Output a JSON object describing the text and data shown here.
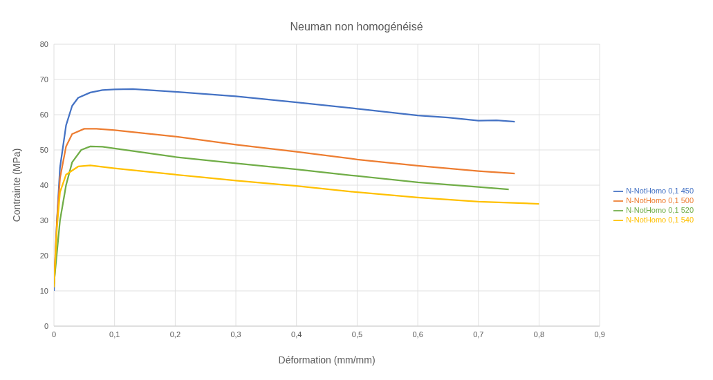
{
  "chart_data": {
    "type": "line",
    "title": "Neuman non homogénéisé",
    "xlabel": "Déformation (mm/mm)",
    "ylabel": "Contrainte (MPa)",
    "xlim": [
      0,
      0.9
    ],
    "xticks": [
      0,
      {
        "value": 0.1,
        "label": "0,1"
      },
      {
        "value": 0.2,
        "label": "0,2"
      },
      {
        "value": 0.3,
        "label": "0,3"
      },
      {
        "value": 0.4,
        "label": "0,4"
      },
      {
        "value": 0.5,
        "label": "0,5"
      },
      {
        "value": 0.6,
        "label": "0,6"
      },
      {
        "value": 0.7,
        "label": "0,7"
      },
      {
        "value": 0.8,
        "label": "0,8"
      },
      {
        "value": 0.9,
        "label": "0,9"
      }
    ],
    "ylim": [
      0,
      80
    ],
    "yticks": [
      0,
      10,
      20,
      30,
      40,
      50,
      60,
      70,
      80
    ],
    "grid": true,
    "legend": "right",
    "marker": "none",
    "line_style": "solid",
    "series": [
      {
        "name": "N-NotHomo 0,1 450",
        "color": "#4472c4",
        "x": [
          0,
          0.005,
          0.01,
          0.02,
          0.03,
          0.04,
          0.06,
          0.08,
          0.1,
          0.13,
          0.2,
          0.3,
          0.4,
          0.5,
          0.6,
          0.65,
          0.7,
          0.73,
          0.76
        ],
        "values": [
          10,
          30,
          45,
          57,
          62.5,
          64.8,
          66.3,
          67,
          67.2,
          67.3,
          66.5,
          65.2,
          63.5,
          61.7,
          59.8,
          59.2,
          58.3,
          58.4,
          58
        ]
      },
      {
        "name": "N-NotHomo 0,1 500",
        "color": "#ed7d31",
        "x": [
          0,
          0.005,
          0.01,
          0.02,
          0.03,
          0.05,
          0.07,
          0.1,
          0.2,
          0.3,
          0.4,
          0.5,
          0.6,
          0.7,
          0.76
        ],
        "values": [
          12,
          30,
          42,
          51,
          54.5,
          56,
          56,
          55.6,
          53.8,
          51.5,
          49.5,
          47.3,
          45.5,
          44,
          43.3
        ]
      },
      {
        "name": "N-NotHomo 0,1 520",
        "color": "#70ad47",
        "x": [
          0,
          0.01,
          0.02,
          0.03,
          0.045,
          0.06,
          0.08,
          0.1,
          0.2,
          0.3,
          0.4,
          0.5,
          0.6,
          0.7,
          0.75
        ],
        "values": [
          12,
          30,
          40,
          46.5,
          50,
          51,
          50.9,
          50.4,
          48,
          46.2,
          44.5,
          42.6,
          40.8,
          39.5,
          38.8
        ]
      },
      {
        "name": "N-NotHomo 0,1 540",
        "color": "#ffc000",
        "x": [
          0,
          0.005,
          0.01,
          0.02,
          0.04,
          0.06,
          0.1,
          0.2,
          0.3,
          0.4,
          0.5,
          0.6,
          0.7,
          0.8
        ],
        "values": [
          11,
          28,
          38,
          43,
          45.3,
          45.6,
          44.8,
          43,
          41.3,
          39.8,
          38,
          36.5,
          35.3,
          34.7
        ]
      }
    ]
  }
}
